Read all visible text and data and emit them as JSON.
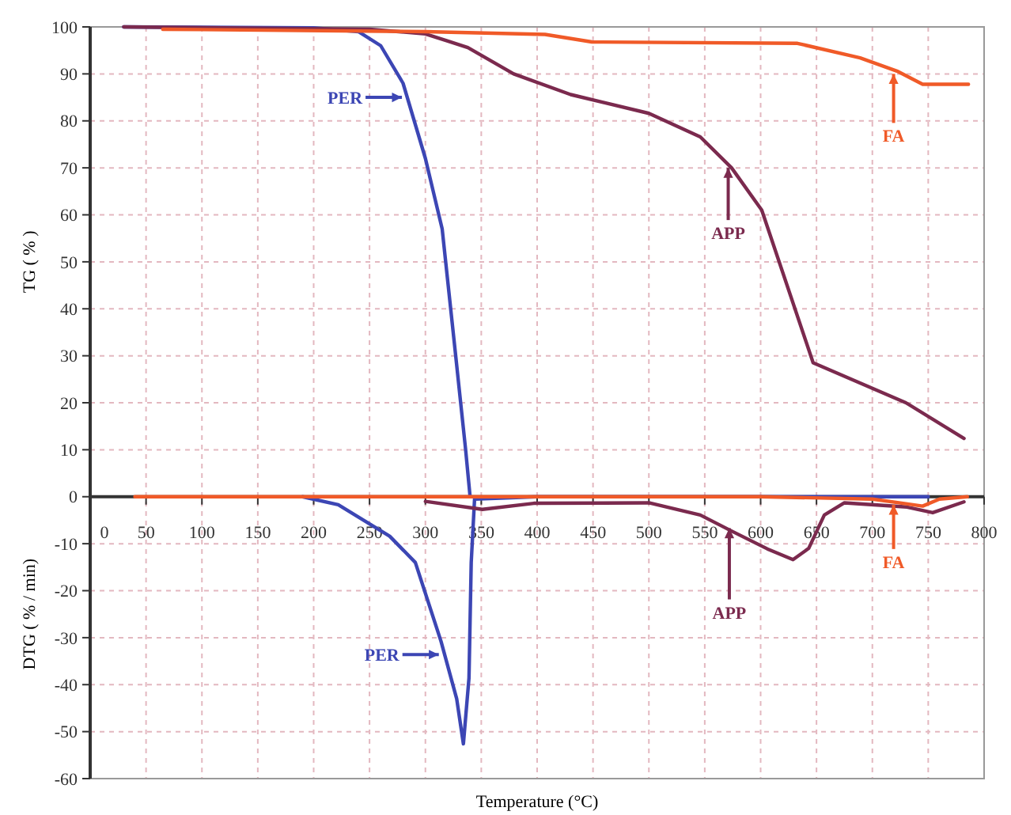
{
  "chart_data": {
    "type": "line",
    "xlabel": "Temperature (°C)",
    "ylabel": "TG ( % )",
    "xlim": [
      0,
      800
    ],
    "ylim": [
      -60,
      100
    ],
    "xticks": [
      0,
      50,
      100,
      150,
      200,
      250,
      300,
      350,
      400,
      450,
      500,
      550,
      600,
      650,
      700,
      750,
      800
    ],
    "yticks": [
      -60,
      -50,
      -40,
      -30,
      -20,
      -10,
      0,
      10,
      20,
      30,
      40,
      50,
      60,
      70,
      80,
      90,
      100
    ],
    "grid": true,
    "line_style": "solid",
    "marker": "none",
    "series": [
      {
        "color": "#3c46b4",
        "x": [
          30,
          200,
          240,
          260,
          280,
          300,
          315,
          328,
          336,
          340
        ],
        "values": [
          100,
          99.8,
          99,
          96,
          88,
          72,
          57,
          28,
          10,
          0
        ]
      },
      {
        "color": "#7b2a4e",
        "x": [
          30,
          250,
          300,
          320,
          338,
          379,
          430,
          500,
          546,
          574,
          601,
          647,
          730,
          782
        ],
        "values": [
          100,
          99.5,
          98.5,
          97,
          95.6,
          90,
          85.6,
          81.6,
          76.6,
          70,
          61,
          28.5,
          20,
          12.4
        ]
      },
      {
        "color": "#f05a28",
        "x": [
          65,
          300,
          407,
          449,
          633,
          689,
          722,
          745,
          786
        ],
        "values": [
          99.5,
          99,
          98.4,
          96.8,
          96.5,
          93.4,
          90.6,
          87.8,
          87.8
        ]
      },
      {
        "color": "#3c46b4",
        "x": [
          190,
          222,
          268,
          291,
          314,
          328,
          334,
          339,
          341,
          344,
          400,
          750
        ],
        "values": [
          0,
          -1.7,
          -8.4,
          -14,
          -30.8,
          -43,
          -52.6,
          -38.6,
          -14,
          -0.5,
          0,
          0
        ]
      },
      {
        "color": "#7b2a4e",
        "x": [
          300,
          351,
          397,
          500,
          546,
          574,
          606,
          629,
          643,
          657,
          675,
          731,
          754,
          782
        ],
        "values": [
          -1,
          -2.7,
          -1.4,
          -1.3,
          -3.9,
          -7.3,
          -11.1,
          -13.4,
          -11,
          -3.9,
          -1.3,
          -2.2,
          -3.4,
          -1.1
        ]
      },
      {
        "color": "#f05a28",
        "x": [
          40,
          600,
          700,
          730,
          745,
          760,
          785
        ],
        "values": [
          0,
          0,
          -0.5,
          -1.5,
          -2,
          -0.5,
          0
        ]
      }
    ],
    "annotations": [
      {
        "text": "PER",
        "x": 279,
        "y": 85
      },
      {
        "text": "APP",
        "x": 571,
        "y": 70
      },
      {
        "text": "FA",
        "x": 719,
        "y": 90
      },
      {
        "text": "PER",
        "x": 312,
        "y": -33.6
      },
      {
        "text": "APP",
        "x": 572,
        "y": -6.7
      },
      {
        "text": "FA",
        "x": 719,
        "y": -1.7
      },
      "DTG ( % / min)"
    ]
  }
}
